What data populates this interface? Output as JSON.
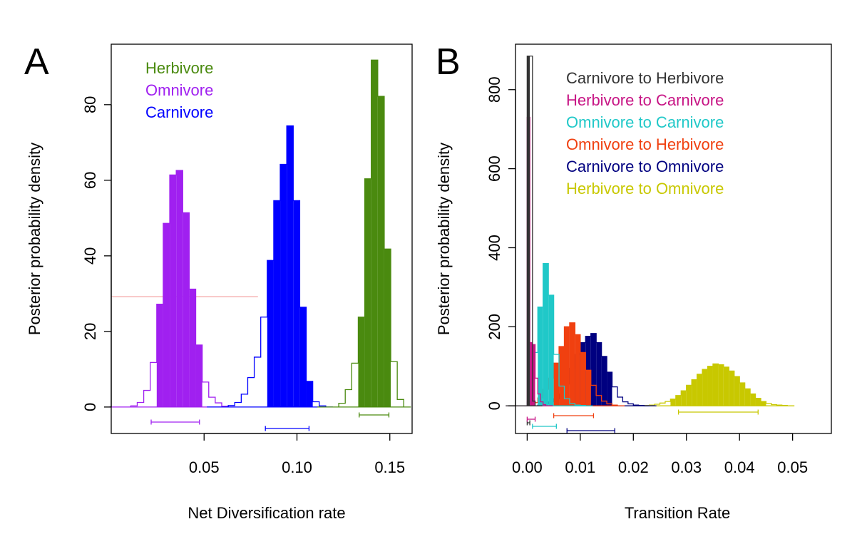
{
  "chart_data": [
    {
      "panel_label": "A",
      "type": "histogram",
      "xlabel": "Net Diversification rate",
      "ylabel": "Posterior probability density",
      "xlim": [
        0.0,
        0.162
      ],
      "ylim": [
        -7,
        96
      ],
      "xticks": [
        0.05,
        0.1,
        0.15
      ],
      "xtick_labels": [
        "0.05",
        "0.10",
        "0.15"
      ],
      "yticks": [
        0,
        20,
        40,
        60,
        80
      ],
      "ytick_labels": [
        "0",
        "20",
        "40",
        "60",
        "80"
      ],
      "legend_position": "top-left",
      "legend": [
        {
          "label": "Herbivore",
          "color": "#4a8a0f"
        },
        {
          "label": "Omnivore",
          "color": "#a020f0"
        },
        {
          "label": "Carnivore",
          "color": "#0000ff"
        }
      ],
      "reference_line": {
        "y": 29.2,
        "x_range": [
          0.0,
          0.079
        ],
        "color": "#f4a6a6"
      },
      "series": [
        {
          "name": "Omnivore",
          "color": "#a020f0",
          "bin_width": 0.0035,
          "bins_start": [
            0.0105,
            0.014,
            0.0175,
            0.021,
            0.0245,
            0.028,
            0.0315,
            0.035,
            0.0385,
            0.042,
            0.0455,
            0.049,
            0.0525,
            0.056,
            0.0595
          ],
          "density": [
            0.3,
            1.2,
            4.4,
            11.8,
            27.2,
            48.6,
            61.4,
            62.6,
            51.4,
            31.2,
            16.4,
            6.6,
            2.6,
            1.1,
            0.2
          ],
          "filled_range": [
            0.0245,
            0.049
          ],
          "hpd": [
            0.0215,
            0.0475
          ]
        },
        {
          "name": "Carnivore",
          "color": "#0000ff",
          "bin_width": 0.0035,
          "bins_start": [
            0.063,
            0.0665,
            0.07,
            0.0735,
            0.077,
            0.0805,
            0.084,
            0.0875,
            0.091,
            0.0945,
            0.098,
            0.1015,
            0.105,
            0.1085,
            0.112
          ],
          "density": [
            0.4,
            1.2,
            3.4,
            7.8,
            13.2,
            23.8,
            38.8,
            54.6,
            64.2,
            74.4,
            54.6,
            26.4,
            6.8,
            1.4,
            0.3
          ],
          "filled_range": [
            0.084,
            0.1085
          ],
          "hpd": [
            0.083,
            0.1065
          ]
        },
        {
          "name": "Herbivore",
          "color": "#4a8a0f",
          "bin_width": 0.0035,
          "bins_start": [
            0.1225,
            0.126,
            0.1295,
            0.133,
            0.1365,
            0.14,
            0.1435,
            0.147,
            0.1505,
            0.154
          ],
          "density": [
            1.0,
            4.6,
            11.6,
            23.8,
            60.4,
            91.8,
            82.2,
            41.8,
            12.0,
            2.0
          ],
          "filled_range": [
            0.133,
            0.1505
          ],
          "hpd": [
            0.1335,
            0.1495
          ]
        }
      ]
    },
    {
      "panel_label": "B",
      "type": "histogram",
      "xlabel": "Transition Rate",
      "ylabel": "Posterior probability density",
      "xlim": [
        -0.0022,
        0.0573
      ],
      "ylim": [
        -70,
        915
      ],
      "xticks": [
        0.0,
        0.01,
        0.02,
        0.03,
        0.04,
        0.05
      ],
      "xtick_labels": [
        "0.00",
        "0.01",
        "0.02",
        "0.03",
        "0.04",
        "0.05"
      ],
      "yticks": [
        0,
        200,
        400,
        600,
        800
      ],
      "ytick_labels": [
        "0",
        "200",
        "400",
        "600",
        "800"
      ],
      "legend_position": "top-center",
      "legend": [
        {
          "label": "Carnivore to Herbivore",
          "color": "#333333"
        },
        {
          "label": "Herbivore to Carnivore",
          "color": "#c71585"
        },
        {
          "label": "Omnivore to Carnivore",
          "color": "#20c8c8"
        },
        {
          "label": "Omnivore to Herbivore",
          "color": "#f04010"
        },
        {
          "label": "Carnivore to Omnivore",
          "color": "#000080"
        },
        {
          "label": "Herbivore to Omnivore",
          "color": "#c8c800"
        }
      ],
      "series": [
        {
          "name": "Herbivore to Omnivore",
          "color": "#c8c800",
          "bin_width": 0.001,
          "bins_start": [
            0.022,
            0.023,
            0.024,
            0.025,
            0.026,
            0.027,
            0.028,
            0.029,
            0.03,
            0.031,
            0.032,
            0.033,
            0.034,
            0.035,
            0.036,
            0.037,
            0.038,
            0.039,
            0.04,
            0.041,
            0.042,
            0.043,
            0.044,
            0.045,
            0.046,
            0.047,
            0.048
          ],
          "density": [
            1,
            2,
            4,
            7,
            11,
            17,
            26,
            38,
            52,
            66,
            80,
            92,
            100,
            106,
            104,
            98,
            88,
            74,
            58,
            43,
            30,
            19,
            11,
            6,
            3,
            2,
            1
          ],
          "filled_range": [
            0.027,
            0.045
          ],
          "hpd": [
            0.0285,
            0.0435
          ]
        },
        {
          "name": "Carnivore to Omnivore",
          "color": "#000080",
          "bin_width": 0.001,
          "bins_start": [
            0.002,
            0.003,
            0.004,
            0.005,
            0.006,
            0.007,
            0.008,
            0.009,
            0.01,
            0.011,
            0.012,
            0.013,
            0.014,
            0.015,
            0.016,
            0.017,
            0.018,
            0.019,
            0.02,
            0.021,
            0.022
          ],
          "density": [
            2,
            5,
            10,
            18,
            30,
            55,
            95,
            130,
            160,
            176,
            183,
            160,
            125,
            85,
            48,
            22,
            10,
            5,
            2,
            1,
            0
          ],
          "filled_range": [
            0.008,
            0.016
          ],
          "hpd": [
            0.0075,
            0.0165
          ]
        },
        {
          "name": "Omnivore to Herbivore",
          "color": "#f04010",
          "bin_width": 0.001,
          "bins_start": [
            0.001,
            0.002,
            0.003,
            0.004,
            0.005,
            0.006,
            0.007,
            0.008,
            0.009,
            0.01,
            0.011,
            0.012,
            0.013,
            0.014,
            0.015,
            0.016
          ],
          "density": [
            8,
            20,
            42,
            70,
            108,
            150,
            200,
            210,
            180,
            135,
            90,
            52,
            26,
            12,
            5,
            2
          ],
          "filled_range": [
            0.005,
            0.012
          ],
          "hpd": [
            0.005,
            0.0125
          ]
        },
        {
          "name": "Omnivore to Carnivore",
          "color": "#20c8c8",
          "bin_width": 0.001,
          "bins_start": [
            0.0,
            0.001,
            0.002,
            0.003,
            0.004,
            0.005,
            0.006,
            0.007,
            0.008,
            0.009,
            0.01
          ],
          "density": [
            10,
            135,
            250,
            360,
            280,
            130,
            50,
            18,
            6,
            2,
            1
          ],
          "filled_range": [
            0.002,
            0.005
          ],
          "hpd": [
            0.001,
            0.0055
          ]
        },
        {
          "name": "Herbivore to Carnivore",
          "color": "#c71585",
          "bin_width": 0.0005,
          "bins_start": [
            0.0,
            0.0005,
            0.001,
            0.0015,
            0.002,
            0.0025,
            0.003
          ],
          "density": [
            730,
            160,
            155,
            70,
            30,
            10,
            3
          ],
          "filled_range": [
            0.0,
            0.0015
          ],
          "hpd": [
            0.0,
            0.0015
          ]
        },
        {
          "name": "Carnivore to Herbivore",
          "color": "#333333",
          "bin_width": 0.0005,
          "bins_start": [
            0.0,
            0.0005,
            0.001
          ],
          "density": [
            885,
            885,
            12
          ],
          "filled_range": [
            0.0,
            0.0005
          ],
          "hpd": [
            0.0,
            0.0005
          ]
        }
      ]
    }
  ]
}
